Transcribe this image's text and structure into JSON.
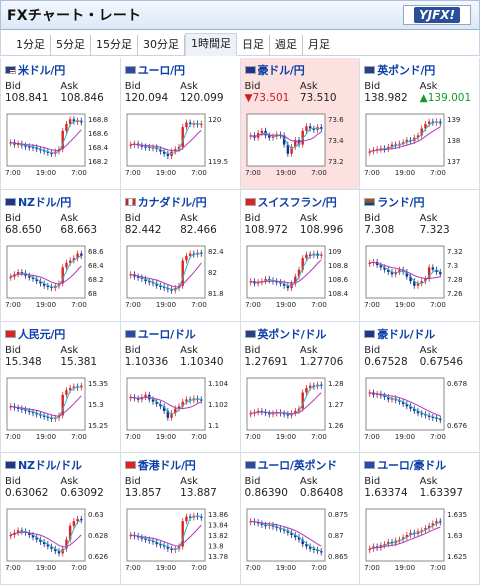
{
  "header": {
    "title": "FXチャート・レート",
    "logo_text": "YJFX!"
  },
  "tabs": [
    "1分足",
    "5分足",
    "15分足",
    "30分足",
    "1時間足",
    "日足",
    "週足",
    "月足"
  ],
  "active_tab": 4,
  "labels": {
    "bid": "Bid",
    "ask": "Ask"
  },
  "cells": [
    {
      "pair": "米ドル/円",
      "flag": "us",
      "bid": "108.841",
      "ask": "108.846",
      "bid_dir": "",
      "ask_dir": "",
      "highlight": false,
      "yticks": [
        "168.8",
        "168.6",
        "168.4",
        "168.2"
      ],
      "xticks": [
        "7:00",
        "19:00",
        "7:00"
      ],
      "series": [
        0.45,
        0.4,
        0.42,
        0.38,
        0.36,
        0.35,
        0.34,
        0.3,
        0.28,
        0.25,
        0.22,
        0.2,
        0.25,
        0.3,
        0.7,
        0.85,
        0.95,
        0.9,
        0.92,
        0.88
      ]
    },
    {
      "pair": "ユーロ/円",
      "flag": "eu",
      "bid": "120.094",
      "ask": "120.099",
      "bid_dir": "",
      "ask_dir": "",
      "highlight": false,
      "yticks": [
        "120",
        "119.5"
      ],
      "xticks": [
        "7:00",
        "19:00",
        "7:00"
      ],
      "series": [
        0.4,
        0.42,
        0.38,
        0.36,
        0.35,
        0.33,
        0.34,
        0.3,
        0.25,
        0.2,
        0.15,
        0.25,
        0.3,
        0.35,
        0.78,
        0.88,
        0.85,
        0.86,
        0.84,
        0.85
      ]
    },
    {
      "pair": "豪ドル/円",
      "flag": "au",
      "bid": "73.501",
      "ask": "73.510",
      "bid_dir": "down",
      "ask_dir": "",
      "highlight": true,
      "yticks": [
        "73.6",
        "73.4",
        "73.2"
      ],
      "xticks": [
        "7:00",
        "19:00",
        "7:00"
      ],
      "series": [
        0.6,
        0.55,
        0.65,
        0.7,
        0.6,
        0.55,
        0.58,
        0.62,
        0.6,
        0.4,
        0.2,
        0.35,
        0.5,
        0.4,
        0.7,
        0.8,
        0.75,
        0.72,
        0.78,
        0.74
      ]
    },
    {
      "pair": "英ポンド/円",
      "flag": "gb",
      "bid": "138.982",
      "ask": "139.001",
      "bid_dir": "",
      "ask_dir": "up",
      "highlight": false,
      "yticks": [
        "139",
        "138",
        "137"
      ],
      "xticks": [
        "7:00",
        "19:00",
        "7:00"
      ],
      "series": [
        0.25,
        0.28,
        0.3,
        0.32,
        0.3,
        0.35,
        0.4,
        0.38,
        0.42,
        0.45,
        0.5,
        0.48,
        0.55,
        0.6,
        0.75,
        0.85,
        0.9,
        0.88,
        0.9,
        0.86
      ]
    },
    {
      "pair": "NZドル/円",
      "flag": "nz",
      "bid": "68.650",
      "ask": "68.663",
      "bid_dir": "",
      "ask_dir": "",
      "highlight": false,
      "yticks": [
        "68.6",
        "68.4",
        "68.2",
        "68"
      ],
      "xticks": [
        "7:00",
        "19:00",
        "7:00"
      ],
      "series": [
        0.4,
        0.45,
        0.5,
        0.48,
        0.42,
        0.38,
        0.35,
        0.3,
        0.25,
        0.2,
        0.18,
        0.15,
        0.2,
        0.25,
        0.6,
        0.7,
        0.75,
        0.8,
        0.9,
        0.85
      ]
    },
    {
      "pair": "カナダドル/円",
      "flag": "ca",
      "bid": "82.442",
      "ask": "82.466",
      "bid_dir": "",
      "ask_dir": "",
      "highlight": false,
      "yticks": [
        "82.4",
        "82",
        "81.8"
      ],
      "xticks": [
        "7:00",
        "19:00",
        "7:00"
      ],
      "series": [
        0.45,
        0.4,
        0.38,
        0.35,
        0.3,
        0.28,
        0.25,
        0.2,
        0.18,
        0.15,
        0.12,
        0.1,
        0.15,
        0.2,
        0.75,
        0.85,
        0.9,
        0.88,
        0.92,
        0.9
      ]
    },
    {
      "pair": "スイスフラン/円",
      "flag": "ch",
      "bid": "108.972",
      "ask": "108.996",
      "bid_dir": "",
      "ask_dir": "",
      "highlight": false,
      "yticks": [
        "109",
        "108.8",
        "108.6",
        "108.4"
      ],
      "xticks": [
        "7:00",
        "19:00",
        "7:00"
      ],
      "series": [
        0.3,
        0.25,
        0.28,
        0.3,
        0.35,
        0.32,
        0.3,
        0.28,
        0.25,
        0.2,
        0.15,
        0.25,
        0.4,
        0.55,
        0.8,
        0.88,
        0.86,
        0.9,
        0.85,
        0.88
      ]
    },
    {
      "pair": "ランド/円",
      "flag": "za",
      "bid": "7.308",
      "ask": "7.323",
      "bid_dir": "",
      "ask_dir": "",
      "highlight": false,
      "yticks": [
        "7.32",
        "7.3",
        "7.28",
        "7.26"
      ],
      "xticks": [
        "7:00",
        "19:00",
        "7:00"
      ],
      "series": [
        0.7,
        0.72,
        0.65,
        0.6,
        0.55,
        0.5,
        0.45,
        0.5,
        0.55,
        0.5,
        0.4,
        0.3,
        0.2,
        0.25,
        0.3,
        0.35,
        0.6,
        0.55,
        0.5,
        0.45
      ]
    },
    {
      "pair": "人民元/円",
      "flag": "cn",
      "bid": "15.348",
      "ask": "15.381",
      "bid_dir": "",
      "ask_dir": "",
      "highlight": false,
      "yticks": [
        "15.35",
        "15.3",
        "15.25"
      ],
      "xticks": [
        "7:00",
        "19:00",
        "7:00"
      ],
      "series": [
        0.45,
        0.42,
        0.4,
        0.38,
        0.35,
        0.33,
        0.3,
        0.28,
        0.25,
        0.22,
        0.2,
        0.18,
        0.2,
        0.25,
        0.7,
        0.8,
        0.85,
        0.88,
        0.86,
        0.9
      ]
    },
    {
      "pair": "ユーロ/ドル",
      "flag": "eu",
      "bid": "1.10336",
      "ask": "1.10340",
      "bid_dir": "",
      "ask_dir": "",
      "highlight": false,
      "yticks": [
        "1.104",
        "1.102",
        "1.1"
      ],
      "xticks": [
        "7:00",
        "19:00",
        "7:00"
      ],
      "series": [
        0.65,
        0.62,
        0.6,
        0.65,
        0.7,
        0.6,
        0.55,
        0.5,
        0.45,
        0.35,
        0.2,
        0.3,
        0.4,
        0.45,
        0.55,
        0.6,
        0.58,
        0.62,
        0.6,
        0.58
      ]
    },
    {
      "pair": "英ポンド/ドル",
      "flag": "gb",
      "bid": "1.27691",
      "ask": "1.27706",
      "bid_dir": "",
      "ask_dir": "",
      "highlight": false,
      "yticks": [
        "1.28",
        "1.27",
        "1.26"
      ],
      "xticks": [
        "7:00",
        "19:00",
        "7:00"
      ],
      "series": [
        0.3,
        0.32,
        0.35,
        0.33,
        0.3,
        0.28,
        0.3,
        0.32,
        0.3,
        0.28,
        0.25,
        0.3,
        0.35,
        0.4,
        0.75,
        0.85,
        0.9,
        0.88,
        0.92,
        0.9
      ]
    },
    {
      "pair": "豪ドル/ドル",
      "flag": "au",
      "bid": "0.67528",
      "ask": "0.67546",
      "bid_dir": "",
      "ask_dir": "",
      "highlight": false,
      "yticks": [
        "0.678",
        "0.676"
      ],
      "xticks": [
        "7:00",
        "19:00",
        "7:00"
      ],
      "series": [
        0.75,
        0.7,
        0.72,
        0.68,
        0.65,
        0.6,
        0.62,
        0.58,
        0.55,
        0.5,
        0.45,
        0.4,
        0.35,
        0.3,
        0.28,
        0.25,
        0.22,
        0.2,
        0.18,
        0.15
      ]
    },
    {
      "pair": "NZドル/ドル",
      "flag": "nz",
      "bid": "0.63062",
      "ask": "0.63092",
      "bid_dir": "",
      "ask_dir": "",
      "highlight": false,
      "yticks": [
        "0.63",
        "0.628",
        "0.626"
      ],
      "xticks": [
        "7:00",
        "19:00",
        "7:00"
      ],
      "series": [
        0.5,
        0.55,
        0.6,
        0.58,
        0.55,
        0.5,
        0.45,
        0.4,
        0.35,
        0.3,
        0.25,
        0.2,
        0.15,
        0.1,
        0.2,
        0.4,
        0.7,
        0.8,
        0.85,
        0.82
      ]
    },
    {
      "pair": "香港ドル/円",
      "flag": "hk",
      "bid": "13.857",
      "ask": "13.887",
      "bid_dir": "",
      "ask_dir": "",
      "highlight": false,
      "yticks": [
        "13.86",
        "13.84",
        "13.82",
        "13.8",
        "13.78"
      ],
      "xticks": [
        "7:00",
        "19:00",
        "7:00"
      ],
      "series": [
        0.5,
        0.48,
        0.45,
        0.42,
        0.4,
        0.38,
        0.35,
        0.3,
        0.28,
        0.25,
        0.2,
        0.18,
        0.2,
        0.25,
        0.8,
        0.9,
        0.88,
        0.92,
        0.9,
        0.88
      ]
    },
    {
      "pair": "ユーロ/英ポンド",
      "flag": "eu",
      "bid": "0.86390",
      "ask": "0.86408",
      "bid_dir": "",
      "ask_dir": "",
      "highlight": false,
      "yticks": [
        "0.875",
        "0.87",
        "0.865"
      ],
      "xticks": [
        "7:00",
        "19:00",
        "7:00"
      ],
      "series": [
        0.8,
        0.78,
        0.75,
        0.72,
        0.7,
        0.72,
        0.68,
        0.65,
        0.62,
        0.6,
        0.55,
        0.5,
        0.45,
        0.4,
        0.3,
        0.25,
        0.2,
        0.18,
        0.15,
        0.12
      ]
    },
    {
      "pair": "ユーロ/豪ドル",
      "flag": "eu",
      "bid": "1.63374",
      "ask": "1.63397",
      "bid_dir": "",
      "ask_dir": "",
      "highlight": false,
      "yticks": [
        "1.635",
        "1.63",
        "1.625"
      ],
      "xticks": [
        "7:00",
        "19:00",
        "7:00"
      ],
      "series": [
        0.2,
        0.25,
        0.22,
        0.28,
        0.3,
        0.35,
        0.32,
        0.38,
        0.4,
        0.45,
        0.5,
        0.55,
        0.52,
        0.58,
        0.6,
        0.65,
        0.7,
        0.75,
        0.8,
        0.78
      ]
    }
  ]
}
